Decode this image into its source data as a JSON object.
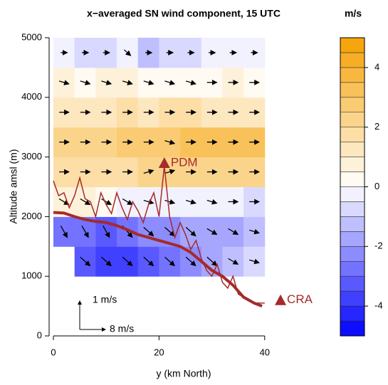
{
  "chart_data": {
    "type": "contour",
    "title": "x−averaged SN wind component, 15 UTC",
    "x_label": "y (km North)",
    "y_label": "Altitude amsl (m)",
    "xlim": [
      0,
      50
    ],
    "ylim": [
      0,
      5000
    ],
    "xticks": [
      0,
      20,
      40
    ],
    "yticks": [
      0,
      1000,
      2000,
      3000,
      4000,
      5000
    ],
    "field": {
      "x": [
        2,
        6,
        10,
        14,
        18,
        22,
        26,
        30,
        34,
        38
      ],
      "y": [
        1250,
        1750,
        2250,
        2750,
        3250,
        3750,
        4250,
        4750
      ],
      "values": [
        [
          null,
          -3.5,
          -4,
          -4,
          -3.5,
          -3,
          -2.5,
          -2,
          -1.5,
          -1
        ],
        [
          -3,
          -3,
          -3.5,
          -3,
          -2.5,
          -2.5,
          -2,
          -2,
          -2,
          -1.5
        ],
        [
          0.5,
          0.5,
          0,
          -0.5,
          -0.5,
          -0.5,
          -0.5,
          -0.5,
          -0.5,
          -1
        ],
        [
          1.5,
          1.5,
          1.5,
          1.5,
          2,
          2,
          2,
          2,
          2,
          2
        ],
        [
          2,
          2,
          2,
          2.5,
          2.5,
          2.5,
          3,
          3,
          3,
          3
        ],
        [
          1,
          1,
          1,
          1.5,
          1,
          1.5,
          1.5,
          1,
          1,
          1
        ],
        [
          0.5,
          0,
          0.5,
          0.5,
          0,
          0,
          0,
          0,
          0.5,
          0
        ],
        [
          -0.5,
          -1,
          -1,
          -0.5,
          -1.5,
          -1,
          -1,
          -0.5,
          -0.5,
          -0.5
        ]
      ],
      "u": [
        [
          null,
          3,
          3,
          3,
          3,
          3,
          3,
          3,
          3,
          3
        ],
        [
          2,
          2,
          2,
          3,
          3,
          3,
          3,
          3,
          3,
          3
        ],
        [
          3,
          3,
          3,
          3,
          3,
          3,
          3,
          3,
          3,
          3
        ],
        [
          3,
          3,
          3,
          3,
          3,
          3,
          3,
          3,
          3,
          3
        ],
        [
          3,
          3,
          3,
          3,
          3,
          3,
          3,
          3,
          3,
          3
        ],
        [
          3,
          3,
          3,
          3,
          3,
          3,
          3,
          3,
          3,
          3
        ],
        [
          3,
          3,
          3,
          3,
          3,
          3,
          3,
          3,
          3,
          3
        ],
        [
          2,
          2,
          2,
          2,
          2,
          2,
          2,
          2,
          2,
          2
        ]
      ],
      "w": [
        [
          null,
          -0.3,
          -0.3,
          -0.3,
          -0.3,
          -0.3,
          -0.3,
          -0.3,
          -0.2,
          -0.1
        ],
        [
          -0.4,
          -0.4,
          -0.4,
          -0.4,
          -0.3,
          -0.3,
          -0.3,
          -0.2,
          -0.2,
          -0.1
        ],
        [
          -0.2,
          -0.2,
          -0.2,
          -0.2,
          -0.1,
          -0.1,
          -0.1,
          -0.1,
          0,
          0
        ],
        [
          0,
          0,
          0,
          0,
          0.1,
          0.1,
          0,
          0,
          0,
          0
        ],
        [
          0,
          0,
          0,
          0,
          0,
          -0.1,
          0,
          0,
          0,
          0
        ],
        [
          0,
          0,
          0,
          0,
          0,
          0,
          0,
          0,
          0,
          0
        ],
        [
          -0.1,
          -0.1,
          -0.1,
          -0.1,
          -0.1,
          -0.1,
          -0.1,
          0,
          0,
          0
        ],
        [
          0,
          0,
          0,
          -0.2,
          0,
          0,
          0,
          0,
          0,
          0
        ]
      ]
    },
    "lines": [
      {
        "color": "#a52a2a",
        "width": 4,
        "x": [
          0,
          2,
          4,
          6,
          8,
          10,
          12,
          14,
          16,
          18,
          20,
          22,
          24,
          26,
          28,
          30,
          32,
          34,
          36,
          38,
          39.5
        ],
        "values": [
          2070,
          2060,
          2000,
          1950,
          1920,
          1900,
          1850,
          1780,
          1700,
          1650,
          1600,
          1550,
          1500,
          1400,
          1250,
          1100,
          1000,
          850,
          650,
          550,
          500
        ]
      },
      {
        "color": "#a52a2a",
        "width": 1.5,
        "x": [
          0,
          1,
          2,
          3,
          4,
          5,
          6,
          7,
          8,
          9,
          10,
          11,
          12,
          13,
          14,
          15,
          16,
          17,
          18,
          19,
          20,
          21,
          22,
          23,
          24,
          25,
          26,
          27,
          28,
          29,
          30,
          31,
          32,
          33,
          34,
          35,
          36,
          37,
          38,
          39,
          40
        ],
        "values": [
          2600,
          2350,
          2400,
          2150,
          2350,
          2650,
          2300,
          2250,
          2000,
          2400,
          2200,
          2050,
          2400,
          2150,
          1950,
          2250,
          2100,
          1900,
          2200,
          2400,
          2000,
          2850,
          2000,
          1650,
          1900,
          1700,
          1450,
          1600,
          1300,
          1100,
          1000,
          1200,
          900,
          800,
          1000,
          700,
          650,
          600,
          550,
          550,
          550
        ]
      }
    ],
    "stations": [
      {
        "name": "PDM",
        "x": 21,
        "y": 2900
      },
      {
        "name": "CRA",
        "x": 43,
        "y": 600
      }
    ],
    "scale": {
      "w": {
        "value": 1,
        "label": "1 m/s"
      },
      "u": {
        "value": 8,
        "label": "8 m/s"
      }
    },
    "colorbar": {
      "title": "m/s",
      "lim": [
        -5,
        5
      ],
      "step": 0.5,
      "ticks": [
        -4,
        -2,
        0,
        2,
        4
      ],
      "neg_color": "#0000ff",
      "pos_color": "#f5a000"
    }
  }
}
